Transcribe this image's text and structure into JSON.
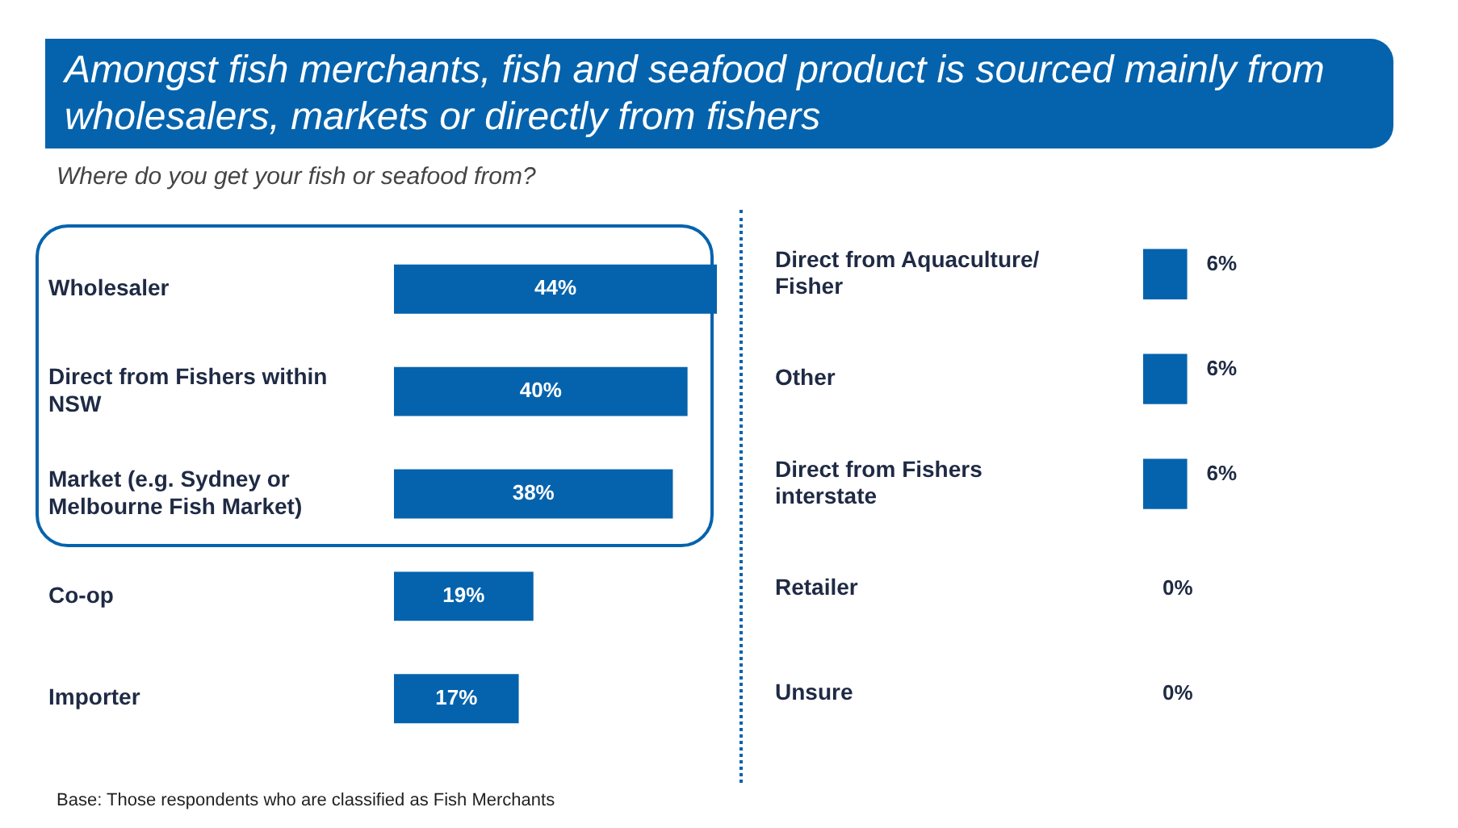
{
  "chart_data": [
    {
      "type": "bar",
      "orientation": "horizontal",
      "title": "Amongst fish merchants, fish and seafood product is sourced mainly from wholesalers, markets or directly from fishers",
      "subtitle": "Where do you get your fish or seafood from?",
      "annotations": [
        "Base: Those respondents who are classified as Fish Merchants"
      ],
      "categories": [
        "Wholesaler",
        "Direct from Fishers within NSW",
        "Market (e.g. Sydney or Melbourne Fish Market)",
        "Co-op",
        "Importer"
      ],
      "values": [
        44,
        40,
        38,
        19,
        17
      ],
      "value_labels": [
        "44%",
        "40%",
        "38%",
        "19%",
        "17%"
      ],
      "color": "#0563ad"
    },
    {
      "type": "bar",
      "orientation": "horizontal",
      "categories": [
        "Direct from Aquaculture/ Fisher",
        "Other",
        "Direct from Fishers interstate",
        "Retailer",
        "Unsure"
      ],
      "values": [
        6,
        6,
        6,
        0,
        0
      ],
      "value_labels": [
        "6%",
        "6%",
        "6%",
        "0%",
        "0%"
      ],
      "color": "#0563ad"
    }
  ]
}
